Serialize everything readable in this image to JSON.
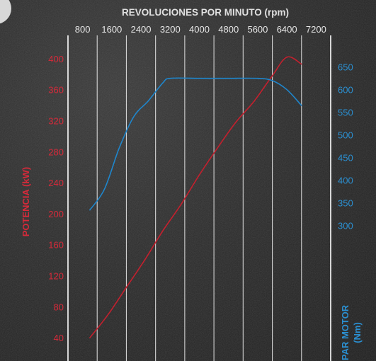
{
  "chart_data": {
    "type": "line",
    "title": "REVOLUCIONES POR MINUTO (rpm)",
    "x_ticks": [
      800,
      1600,
      2400,
      3200,
      4000,
      4800,
      5600,
      6400,
      7200
    ],
    "xlim": [
      400,
      7600
    ],
    "left_axis": {
      "label": "POTENCIA (kW)",
      "ticks": [
        40,
        80,
        120,
        160,
        200,
        240,
        280,
        320,
        360,
        400
      ],
      "range": [
        10,
        430
      ]
    },
    "right_axis": {
      "label_line1": "PAR MOTOR",
      "label_line2": "(Nm)",
      "ticks": [
        300,
        350,
        400,
        450,
        500,
        550,
        600,
        650
      ],
      "range": [
        0,
        720
      ]
    },
    "grid": "vertical",
    "series": [
      {
        "axis": "left",
        "color": "#c4202e",
        "points": [
          [
            1000,
            40
          ],
          [
            1500,
            70
          ],
          [
            2000,
            105
          ],
          [
            2500,
            140
          ],
          [
            3000,
            178
          ],
          [
            3500,
            212
          ],
          [
            4000,
            250
          ],
          [
            4500,
            285
          ],
          [
            5000,
            318
          ],
          [
            5500,
            345
          ],
          [
            6000,
            378
          ],
          [
            6400,
            402
          ],
          [
            6800,
            393
          ]
        ]
      },
      {
        "axis": "right",
        "color": "#1f86cc",
        "points": [
          [
            1000,
            334
          ],
          [
            1400,
            380
          ],
          [
            1800,
            470
          ],
          [
            2200,
            540
          ],
          [
            2600,
            575
          ],
          [
            3000,
            615
          ],
          [
            3200,
            625
          ],
          [
            4000,
            625
          ],
          [
            4800,
            625
          ],
          [
            5600,
            625
          ],
          [
            6000,
            620
          ],
          [
            6400,
            600
          ],
          [
            6800,
            565
          ]
        ]
      }
    ]
  }
}
